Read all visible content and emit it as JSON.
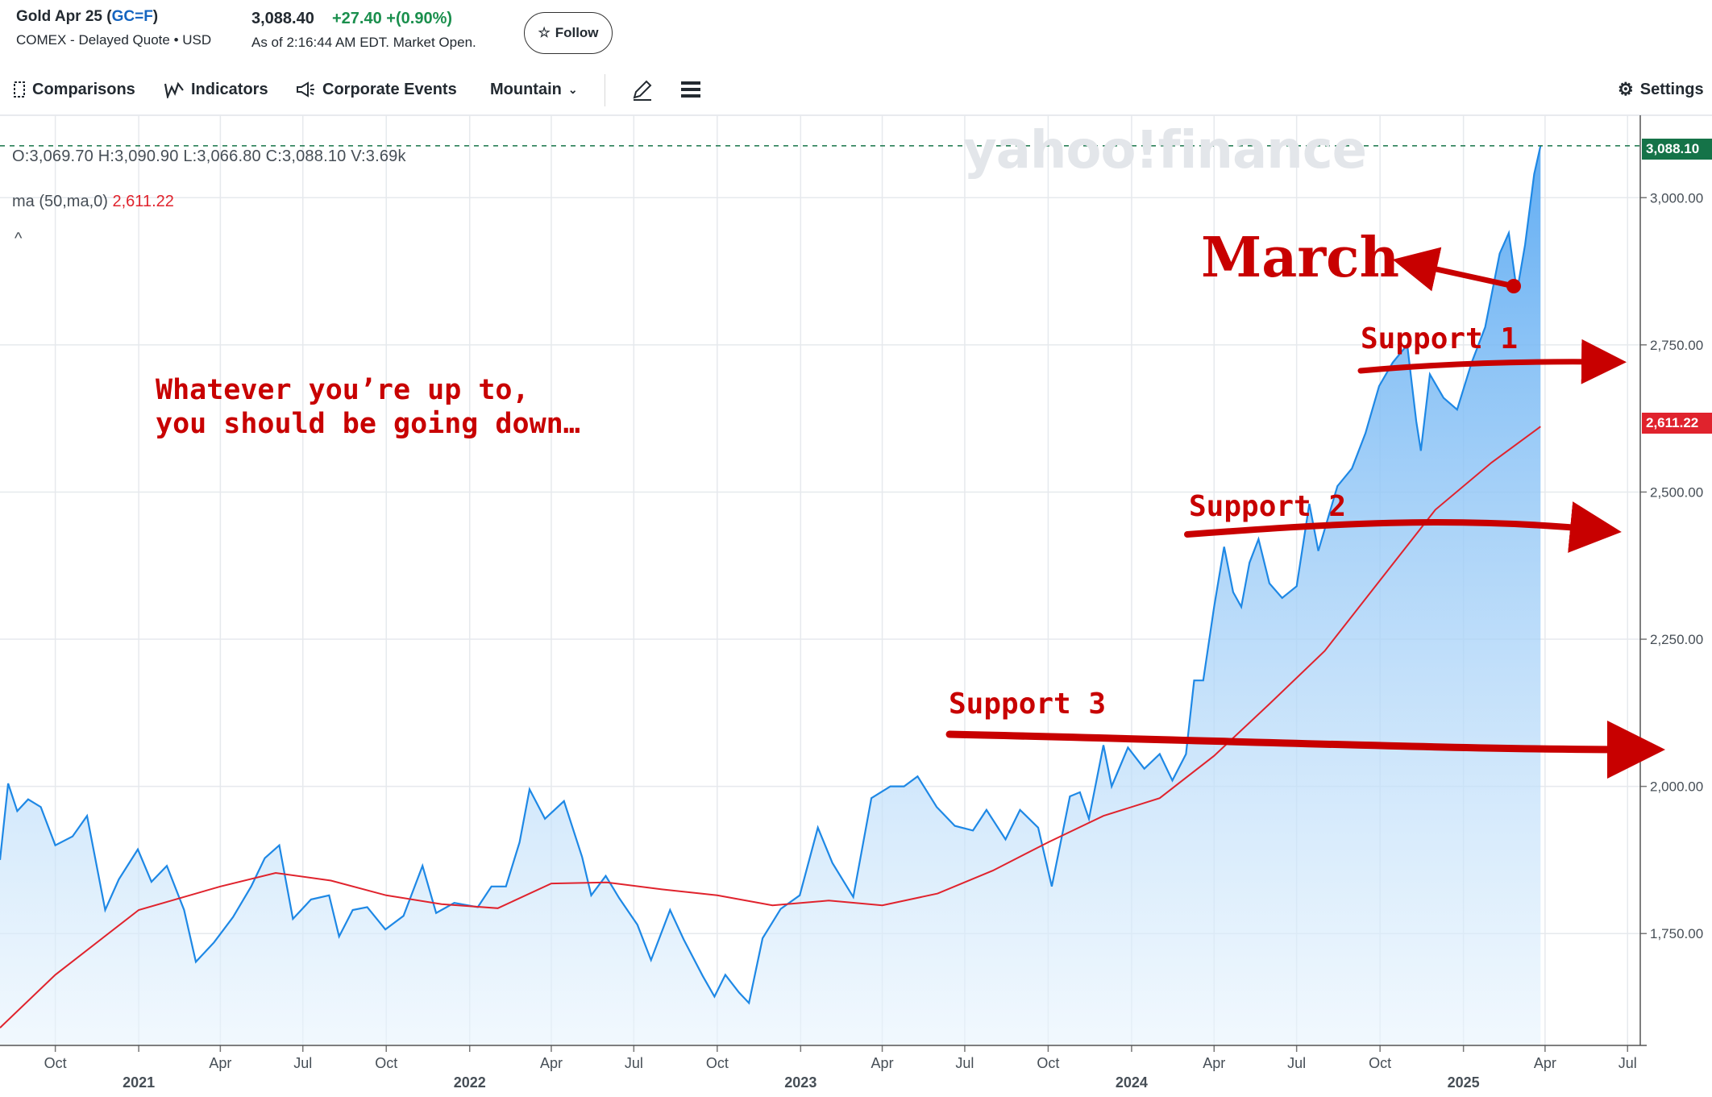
{
  "header": {
    "name": "Gold Apr 25",
    "symbol": "GC=F",
    "exchange_line": "COMEX - Delayed Quote • USD",
    "price": "3,088.40",
    "change": "+27.40",
    "change_pct": "+(0.90%)",
    "as_of": "As of 2:16:44 AM EDT. Market Open.",
    "follow_label": "Follow"
  },
  "toolbar": {
    "comparisons": "Comparisons",
    "indicators": "Indicators",
    "corporate_events": "Corporate Events",
    "chart_type": "Mountain",
    "settings": "Settings"
  },
  "legend": {
    "ohlc": "O:3,069.70   H:3,090.90   L:3,066.80   C:3,088.10   V:3.69k",
    "ma_label": "ma (50,ma,0)",
    "ma_value": "2,611.22"
  },
  "watermark": "yahoo!finance",
  "annotations": {
    "march": "March",
    "support1": "Support 1",
    "support2": "Support 2",
    "support3": "Support 3",
    "note_line1": "Whatever you’re up to,",
    "note_line2": "you should be going down…",
    "color": "#c80000"
  },
  "badges": {
    "last": "3,088.10",
    "ma": "2,611.22"
  },
  "colors": {
    "line": "#1e88e5",
    "fill": "#64b5f6",
    "ma": "#e0232d",
    "last_badge": "#157348",
    "grid": "#e6e9ed"
  },
  "chart_data": {
    "type": "area",
    "x_axis": {
      "range": [
        "2020-08-01",
        "2025-07-15"
      ],
      "month_ticks": [
        {
          "date": "2020-10-01",
          "label": "Oct"
        },
        {
          "date": "2021-01-01",
          "label": "2021",
          "year": true
        },
        {
          "date": "2021-04-01",
          "label": "Apr"
        },
        {
          "date": "2021-07-01",
          "label": "Jul"
        },
        {
          "date": "2021-10-01",
          "label": "Oct"
        },
        {
          "date": "2022-01-01",
          "label": "2022",
          "year": true
        },
        {
          "date": "2022-04-01",
          "label": "Apr"
        },
        {
          "date": "2022-07-01",
          "label": "Jul"
        },
        {
          "date": "2022-10-01",
          "label": "Oct"
        },
        {
          "date": "2023-01-01",
          "label": "2023",
          "year": true
        },
        {
          "date": "2023-04-01",
          "label": "Apr"
        },
        {
          "date": "2023-07-01",
          "label": "Jul"
        },
        {
          "date": "2023-10-01",
          "label": "Oct"
        },
        {
          "date": "2024-01-01",
          "label": "2024",
          "year": true
        },
        {
          "date": "2024-04-01",
          "label": "Apr"
        },
        {
          "date": "2024-07-01",
          "label": "Jul"
        },
        {
          "date": "2024-10-01",
          "label": "Oct"
        },
        {
          "date": "2025-01-01",
          "label": "2025",
          "year": true
        },
        {
          "date": "2025-04-01",
          "label": "Apr"
        },
        {
          "date": "2025-07-01",
          "label": "Jul"
        }
      ]
    },
    "y_axis": {
      "range": [
        1560,
        3140
      ],
      "ticks": [
        {
          "value": 1750,
          "label": "1,750.00"
        },
        {
          "value": 2000,
          "label": "2,000.00"
        },
        {
          "value": 2250,
          "label": "2,250.00"
        },
        {
          "value": 2500,
          "label": "2,500.00"
        },
        {
          "value": 2750,
          "label": "2,750.00"
        },
        {
          "value": 3000,
          "label": "3,000.00"
        }
      ]
    },
    "grid": true,
    "last_value": 3088.1,
    "series": [
      {
        "name": "",
        "role": "price",
        "points": [
          [
            "2020-08-01",
            1875
          ],
          [
            "2020-08-10",
            2005
          ],
          [
            "2020-08-20",
            1958
          ],
          [
            "2020-09-01",
            1978
          ],
          [
            "2020-09-15",
            1965
          ],
          [
            "2020-10-01",
            1900
          ],
          [
            "2020-10-20",
            1915
          ],
          [
            "2020-11-05",
            1950
          ],
          [
            "2020-11-25",
            1790
          ],
          [
            "2020-12-10",
            1842
          ],
          [
            "2020-12-31",
            1893
          ],
          [
            "2021-01-15",
            1838
          ],
          [
            "2021-02-01",
            1865
          ],
          [
            "2021-02-20",
            1790
          ],
          [
            "2021-03-05",
            1702
          ],
          [
            "2021-03-25",
            1735
          ],
          [
            "2021-04-15",
            1778
          ],
          [
            "2021-05-05",
            1830
          ],
          [
            "2021-05-20",
            1878
          ],
          [
            "2021-06-05",
            1900
          ],
          [
            "2021-06-20",
            1775
          ],
          [
            "2021-07-10",
            1808
          ],
          [
            "2021-07-30",
            1815
          ],
          [
            "2021-08-10",
            1745
          ],
          [
            "2021-08-25",
            1790
          ],
          [
            "2021-09-10",
            1795
          ],
          [
            "2021-09-30",
            1757
          ],
          [
            "2021-10-20",
            1780
          ],
          [
            "2021-11-10",
            1865
          ],
          [
            "2021-11-25",
            1785
          ],
          [
            "2021-12-15",
            1802
          ],
          [
            "2022-01-10",
            1795
          ],
          [
            "2022-01-25",
            1830
          ],
          [
            "2022-02-10",
            1830
          ],
          [
            "2022-02-25",
            1905
          ],
          [
            "2022-03-08",
            1995
          ],
          [
            "2022-03-25",
            1945
          ],
          [
            "2022-04-15",
            1975
          ],
          [
            "2022-05-05",
            1880
          ],
          [
            "2022-05-15",
            1815
          ],
          [
            "2022-05-31",
            1848
          ],
          [
            "2022-06-15",
            1810
          ],
          [
            "2022-07-05",
            1765
          ],
          [
            "2022-07-20",
            1705
          ],
          [
            "2022-08-10",
            1790
          ],
          [
            "2022-08-25",
            1740
          ],
          [
            "2022-09-15",
            1678
          ],
          [
            "2022-09-28",
            1643
          ],
          [
            "2022-10-10",
            1680
          ],
          [
            "2022-10-25",
            1650
          ],
          [
            "2022-11-05",
            1632
          ],
          [
            "2022-11-20",
            1742
          ],
          [
            "2022-12-10",
            1792
          ],
          [
            "2022-12-31",
            1815
          ],
          [
            "2023-01-20",
            1930
          ],
          [
            "2023-02-05",
            1870
          ],
          [
            "2023-02-28",
            1812
          ],
          [
            "2023-03-20",
            1980
          ],
          [
            "2023-04-10",
            2000
          ],
          [
            "2023-04-25",
            2000
          ],
          [
            "2023-05-10",
            2017
          ],
          [
            "2023-05-31",
            1965
          ],
          [
            "2023-06-20",
            1933
          ],
          [
            "2023-07-10",
            1925
          ],
          [
            "2023-07-25",
            1960
          ],
          [
            "2023-08-15",
            1910
          ],
          [
            "2023-08-31",
            1960
          ],
          [
            "2023-09-20",
            1930
          ],
          [
            "2023-10-05",
            1830
          ],
          [
            "2023-10-25",
            1983
          ],
          [
            "2023-11-05",
            1990
          ],
          [
            "2023-11-15",
            1945
          ],
          [
            "2023-12-01",
            2070
          ],
          [
            "2023-12-10",
            2000
          ],
          [
            "2023-12-28",
            2066
          ],
          [
            "2024-01-15",
            2030
          ],
          [
            "2024-02-01",
            2055
          ],
          [
            "2024-02-15",
            2010
          ],
          [
            "2024-03-01",
            2055
          ],
          [
            "2024-03-10",
            2180
          ],
          [
            "2024-03-20",
            2180
          ],
          [
            "2024-04-01",
            2305
          ],
          [
            "2024-04-12",
            2407
          ],
          [
            "2024-04-22",
            2330
          ],
          [
            "2024-05-01",
            2305
          ],
          [
            "2024-05-10",
            2380
          ],
          [
            "2024-05-20",
            2420
          ],
          [
            "2024-06-01",
            2345
          ],
          [
            "2024-06-15",
            2320
          ],
          [
            "2024-07-01",
            2340
          ],
          [
            "2024-07-15",
            2480
          ],
          [
            "2024-07-25",
            2400
          ],
          [
            "2024-08-15",
            2510
          ],
          [
            "2024-08-31",
            2540
          ],
          [
            "2024-09-15",
            2600
          ],
          [
            "2024-09-30",
            2680
          ],
          [
            "2024-10-15",
            2720
          ],
          [
            "2024-10-31",
            2750
          ],
          [
            "2024-11-10",
            2620
          ],
          [
            "2024-11-15",
            2570
          ],
          [
            "2024-11-25",
            2700
          ],
          [
            "2024-12-10",
            2660
          ],
          [
            "2024-12-25",
            2640
          ],
          [
            "2025-01-10",
            2720
          ],
          [
            "2025-01-25",
            2780
          ],
          [
            "2025-02-10",
            2905
          ],
          [
            "2025-02-20",
            2940
          ],
          [
            "2025-03-01",
            2840
          ],
          [
            "2025-03-10",
            2920
          ],
          [
            "2025-03-20",
            3040
          ],
          [
            "2025-03-27",
            3088.1
          ]
        ]
      },
      {
        "name": "ma (50,ma,0)",
        "role": "ma",
        "points": [
          [
            "2020-08-01",
            1590
          ],
          [
            "2020-10-01",
            1680
          ],
          [
            "2021-01-01",
            1790
          ],
          [
            "2021-04-01",
            1830
          ],
          [
            "2021-06-01",
            1853
          ],
          [
            "2021-08-01",
            1840
          ],
          [
            "2021-10-01",
            1815
          ],
          [
            "2021-12-01",
            1800
          ],
          [
            "2022-02-01",
            1793
          ],
          [
            "2022-04-01",
            1835
          ],
          [
            "2022-06-01",
            1837
          ],
          [
            "2022-08-01",
            1825
          ],
          [
            "2022-10-01",
            1815
          ],
          [
            "2022-12-01",
            1798
          ],
          [
            "2023-02-01",
            1806
          ],
          [
            "2023-04-01",
            1798
          ],
          [
            "2023-06-01",
            1818
          ],
          [
            "2023-08-01",
            1857
          ],
          [
            "2023-10-01",
            1905
          ],
          [
            "2023-12-01",
            1950
          ],
          [
            "2024-02-01",
            1980
          ],
          [
            "2024-04-01",
            2052
          ],
          [
            "2024-06-01",
            2140
          ],
          [
            "2024-08-01",
            2230
          ],
          [
            "2024-10-01",
            2350
          ],
          [
            "2024-12-01",
            2470
          ],
          [
            "2025-02-01",
            2550
          ],
          [
            "2025-03-27",
            2611.22
          ]
        ]
      }
    ]
  }
}
